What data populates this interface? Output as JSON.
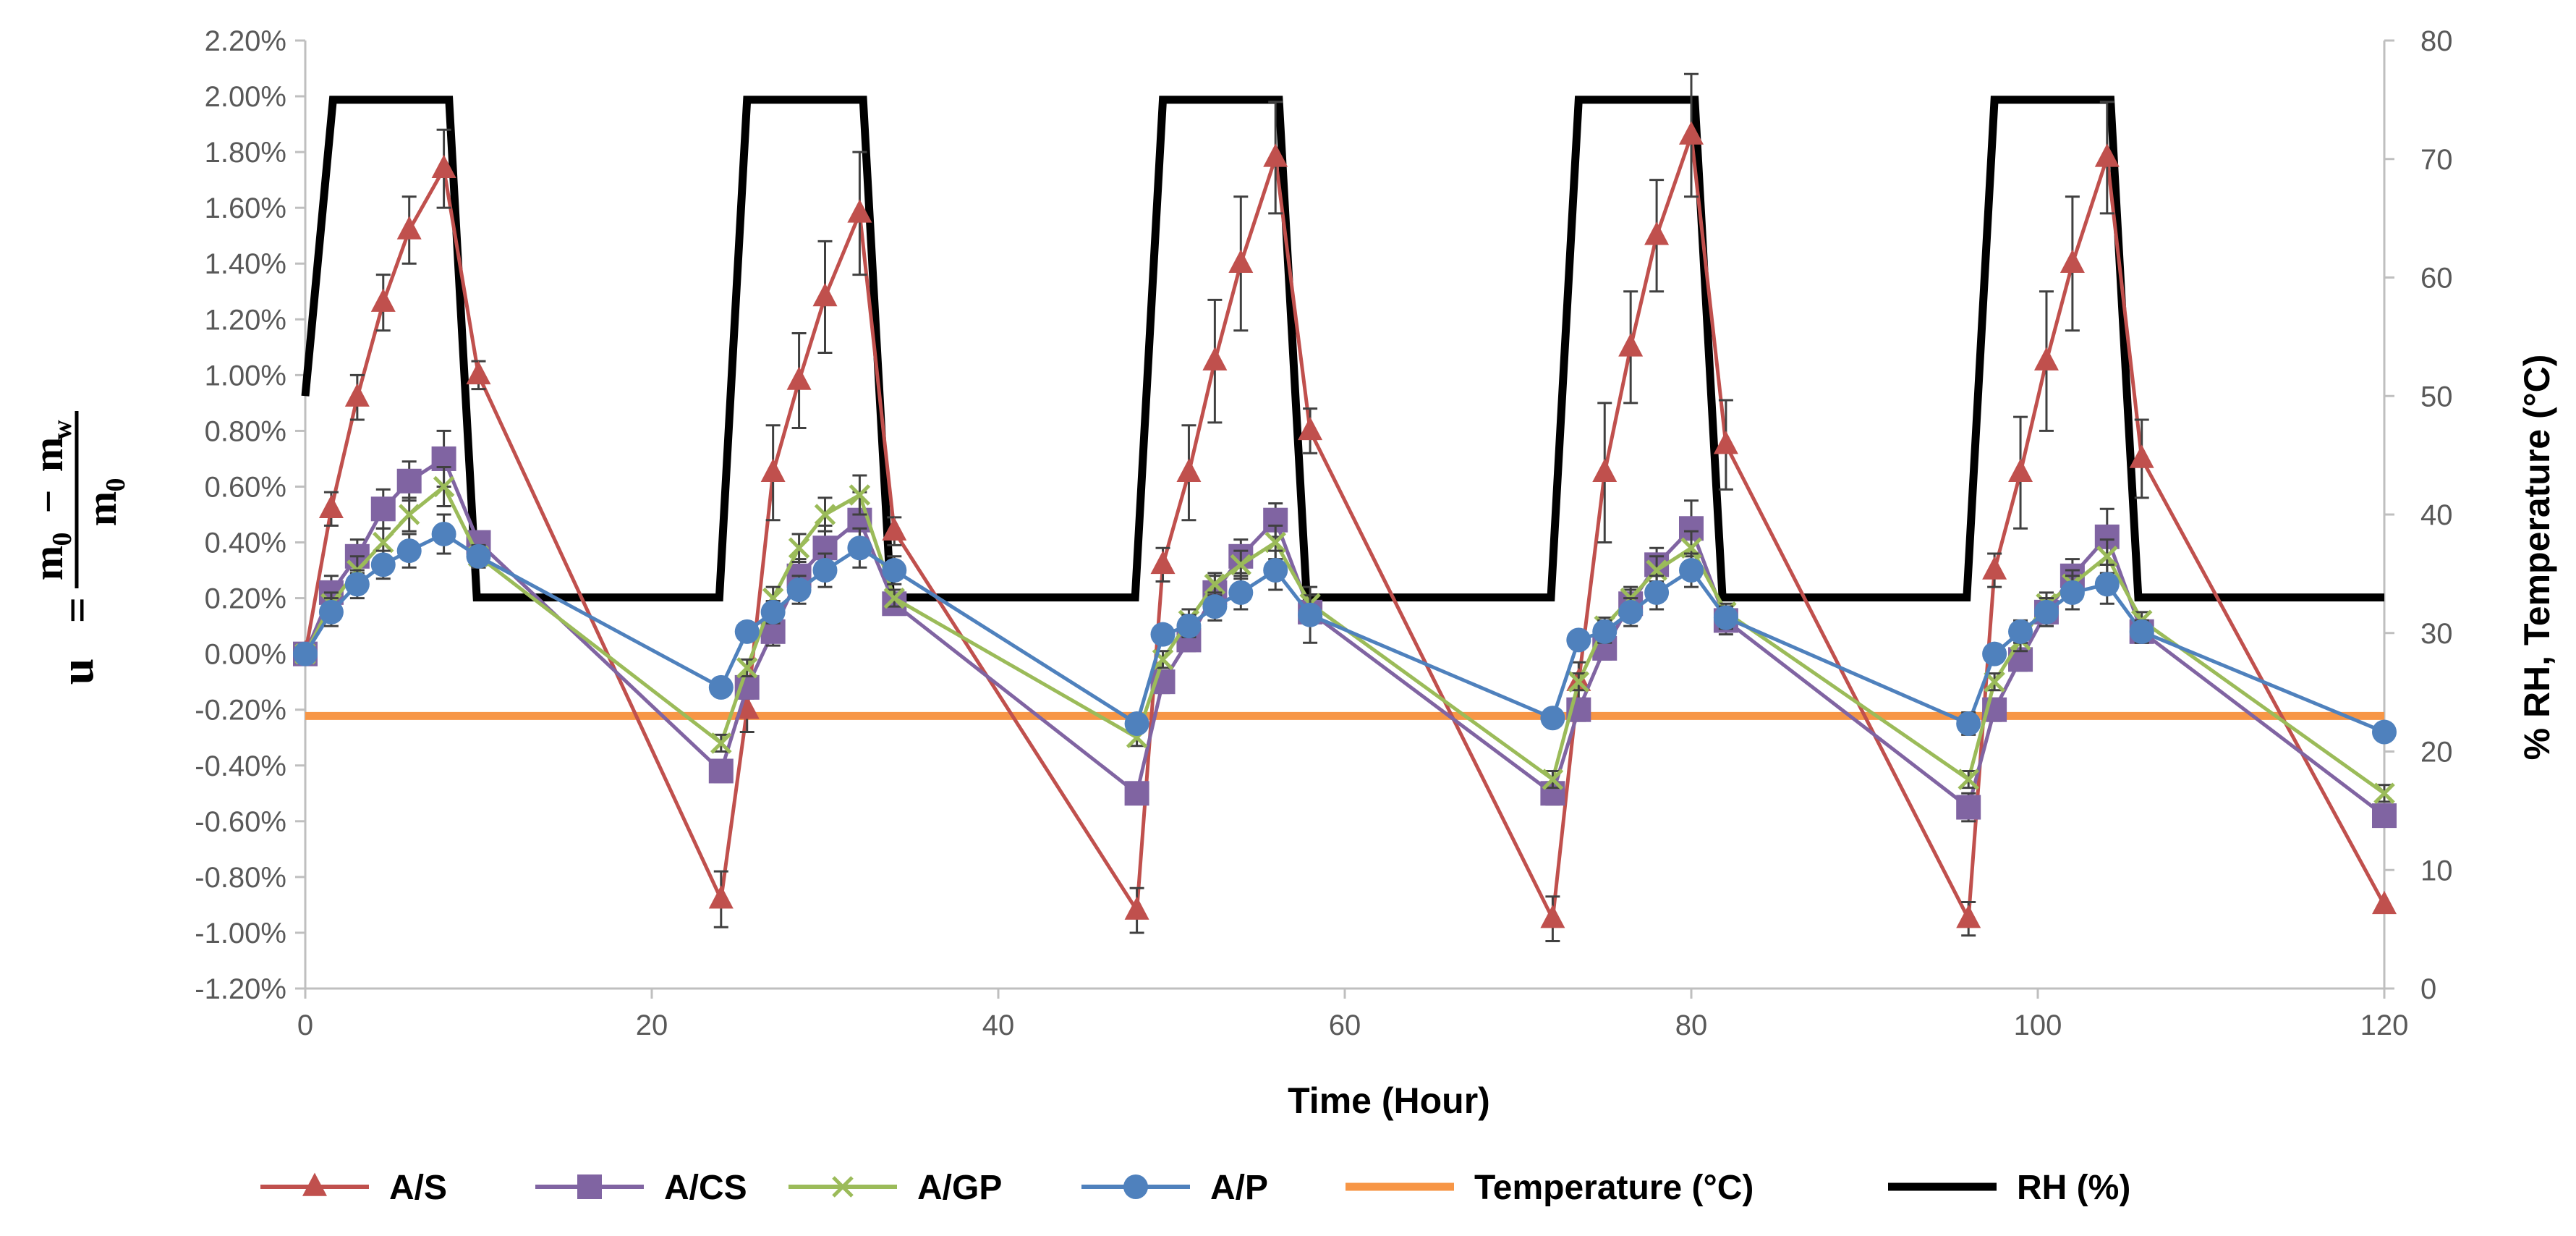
{
  "chart_data": {
    "type": "line",
    "title": "",
    "xlabel": "Time (Hour)",
    "ylabel_left": {
      "lhs": "u",
      "eq": "=",
      "num_a": "m",
      "num_a_sub": "0",
      "num_op": "−",
      "num_b": "m",
      "num_b_sub": "w",
      "den": "m",
      "den_sub": "0"
    },
    "ylabel_right": "% RH, Temperature (°C)",
    "xlim": [
      0,
      120
    ],
    "xticks": [
      "0",
      "20",
      "40",
      "60",
      "80",
      "100",
      "120"
    ],
    "ylim_left": [
      -1.2,
      2.2
    ],
    "yticks_left": [
      "-1.20%",
      "-1.00%",
      "-0.80%",
      "-0.60%",
      "-0.40%",
      "-0.20%",
      "0.00%",
      "0.20%",
      "0.40%",
      "0.60%",
      "0.80%",
      "1.00%",
      "1.20%",
      "1.40%",
      "1.60%",
      "1.80%",
      "2.00%",
      "2.20%"
    ],
    "ylim_right": [
      0,
      80
    ],
    "yticks_right": [
      "0",
      "10",
      "20",
      "30",
      "40",
      "50",
      "60",
      "70",
      "80"
    ],
    "legend_position": "bottom",
    "colors": {
      "A/S": "#c0504d",
      "A/CS": "#8064a2",
      "A/GP": "#9bbb59",
      "A/P": "#4f81bd",
      "Temperature": "#f79646",
      "RH": "#000000"
    },
    "series": [
      {
        "name": "A/S",
        "axis": "left",
        "marker": "triangle",
        "color": "#c0504d",
        "x": [
          0,
          1.5,
          3,
          4.5,
          6,
          8,
          10,
          24,
          25.5,
          27,
          28.5,
          30,
          32,
          34,
          48,
          49.5,
          51,
          52.5,
          54,
          56,
          58,
          72,
          73.5,
          75,
          76.5,
          78,
          80,
          82,
          96,
          97.5,
          99,
          100.5,
          102,
          104,
          106,
          120
        ],
        "y": [
          0.0,
          0.52,
          0.92,
          1.26,
          1.52,
          1.74,
          1.0,
          -0.88,
          -0.2,
          0.65,
          0.98,
          1.28,
          1.58,
          0.44,
          -0.92,
          0.32,
          0.65,
          1.05,
          1.4,
          1.78,
          0.8,
          -0.95,
          -0.1,
          0.65,
          1.1,
          1.5,
          1.86,
          0.75,
          -0.95,
          0.3,
          0.65,
          1.05,
          1.4,
          1.78,
          0.7,
          -0.9
        ],
        "err": [
          0.0,
          0.06,
          0.08,
          0.1,
          0.12,
          0.14,
          0.05,
          0.1,
          0.08,
          0.17,
          0.17,
          0.2,
          0.22,
          0.05,
          0.08,
          0.06,
          0.17,
          0.22,
          0.24,
          0.2,
          0.08,
          0.08,
          0.07,
          0.25,
          0.2,
          0.2,
          0.22,
          0.16,
          0.06,
          0.06,
          0.2,
          0.25,
          0.24,
          0.2,
          0.14,
          0.0
        ]
      },
      {
        "name": "A/CS",
        "axis": "left",
        "marker": "square",
        "color": "#8064a2",
        "x": [
          0,
          1.5,
          3,
          4.5,
          6,
          8,
          10,
          24,
          25.5,
          27,
          28.5,
          30,
          32,
          34,
          48,
          49.5,
          51,
          52.5,
          54,
          56,
          58,
          72,
          73.5,
          75,
          76.5,
          78,
          80,
          82,
          96,
          97.5,
          99,
          100.5,
          102,
          104,
          106,
          120
        ],
        "y": [
          0.0,
          0.22,
          0.35,
          0.52,
          0.62,
          0.7,
          0.4,
          -0.42,
          -0.12,
          0.08,
          0.28,
          0.38,
          0.48,
          0.18,
          -0.5,
          -0.1,
          0.05,
          0.22,
          0.35,
          0.48,
          0.15,
          -0.5,
          -0.2,
          0.02,
          0.18,
          0.32,
          0.45,
          0.12,
          -0.55,
          -0.2,
          -0.02,
          0.15,
          0.28,
          0.42,
          0.08,
          -0.58
        ],
        "err": [
          0.0,
          0.06,
          0.06,
          0.07,
          0.07,
          0.1,
          0.03,
          0.04,
          0.04,
          0.05,
          0.06,
          0.08,
          0.1,
          0.03,
          0.03,
          0.04,
          0.04,
          0.06,
          0.06,
          0.06,
          0.03,
          0.04,
          0.04,
          0.04,
          0.05,
          0.06,
          0.1,
          0.05,
          0.05,
          0.04,
          0.04,
          0.05,
          0.06,
          0.1,
          0.04,
          0.04
        ]
      },
      {
        "name": "A/GP",
        "axis": "left",
        "marker": "x",
        "color": "#9bbb59",
        "x": [
          0,
          1.5,
          3,
          4.5,
          6,
          8,
          10,
          24,
          25.5,
          27,
          28.5,
          30,
          32,
          34,
          48,
          49.5,
          51,
          52.5,
          54,
          56,
          58,
          72,
          73.5,
          75,
          76.5,
          78,
          80,
          82,
          96,
          97.5,
          99,
          100.5,
          102,
          104,
          106,
          120
        ],
        "y": [
          0.0,
          0.18,
          0.3,
          0.4,
          0.5,
          0.6,
          0.35,
          -0.32,
          -0.05,
          0.2,
          0.38,
          0.5,
          0.57,
          0.2,
          -0.3,
          -0.02,
          0.12,
          0.25,
          0.32,
          0.4,
          0.18,
          -0.45,
          -0.1,
          0.1,
          0.2,
          0.3,
          0.38,
          0.15,
          -0.45,
          -0.1,
          0.05,
          0.18,
          0.25,
          0.35,
          0.12,
          -0.5
        ],
        "err": [
          0.0,
          0.04,
          0.05,
          0.05,
          0.06,
          0.07,
          0.03,
          0.03,
          0.03,
          0.04,
          0.05,
          0.06,
          0.07,
          0.03,
          0.03,
          0.03,
          0.04,
          0.04,
          0.05,
          0.06,
          0.03,
          0.03,
          0.03,
          0.03,
          0.04,
          0.05,
          0.06,
          0.03,
          0.03,
          0.03,
          0.04,
          0.04,
          0.05,
          0.06,
          0.03,
          0.03
        ]
      },
      {
        "name": "A/P",
        "axis": "left",
        "marker": "circle",
        "color": "#4f81bd",
        "x": [
          0,
          1.5,
          3,
          4.5,
          6,
          8,
          10,
          24,
          25.5,
          27,
          28.5,
          30,
          32,
          34,
          48,
          49.5,
          51,
          52.5,
          54,
          56,
          58,
          72,
          73.5,
          75,
          76.5,
          78,
          80,
          82,
          96,
          97.5,
          99,
          100.5,
          102,
          104,
          106,
          120
        ],
        "y": [
          0.0,
          0.15,
          0.25,
          0.32,
          0.37,
          0.43,
          0.35,
          -0.12,
          0.08,
          0.15,
          0.23,
          0.3,
          0.38,
          0.3,
          -0.25,
          0.07,
          0.1,
          0.17,
          0.22,
          0.3,
          0.14,
          -0.23,
          0.05,
          0.08,
          0.15,
          0.22,
          0.3,
          0.13,
          -0.25,
          0.0,
          0.08,
          0.15,
          0.22,
          0.25,
          0.08,
          -0.28
        ],
        "err": [
          0.0,
          0.05,
          0.05,
          0.05,
          0.06,
          0.07,
          0.04,
          0.03,
          0.03,
          0.04,
          0.05,
          0.06,
          0.07,
          0.05,
          0.03,
          0.03,
          0.04,
          0.05,
          0.06,
          0.07,
          0.1,
          0.03,
          0.03,
          0.04,
          0.05,
          0.06,
          0.06,
          0.04,
          0.04,
          0.03,
          0.04,
          0.05,
          0.06,
          0.07,
          0.04,
          0.03
        ]
      },
      {
        "name": "Temperature (°C)",
        "axis": "right",
        "marker": "none",
        "color": "#f79646",
        "x": [
          0,
          120
        ],
        "y": [
          23,
          23
        ]
      },
      {
        "name": "RH (%)",
        "axis": "right",
        "marker": "none",
        "color": "#000000",
        "x": [
          0,
          1.6,
          8.3,
          9.9,
          23.9,
          25.5,
          32.2,
          33.8,
          47.9,
          49.5,
          56.2,
          57.8,
          71.9,
          73.5,
          80.2,
          81.8,
          95.9,
          97.5,
          104.2,
          105.8,
          120
        ],
        "y": [
          50,
          75,
          75,
          33,
          33,
          75,
          75,
          33,
          33,
          75,
          75,
          33,
          33,
          75,
          75,
          33,
          33,
          75,
          75,
          33,
          33
        ]
      }
    ]
  }
}
